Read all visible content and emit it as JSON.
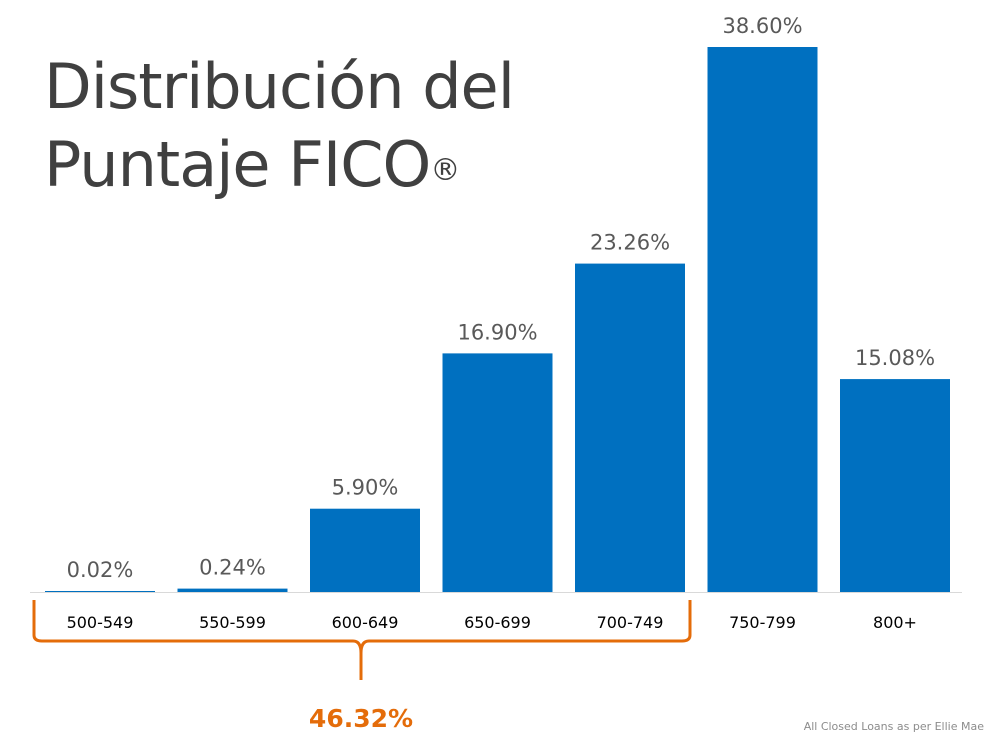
{
  "chart_data": {
    "type": "bar",
    "title": "Distribución del Puntaje FICO",
    "title_line1": "Distribución del",
    "title_line2": "Puntaje FICO",
    "title_mark": "®",
    "categories": [
      "500-549",
      "550-599",
      "600-649",
      "650-699",
      "700-749",
      "750-799",
      "800+"
    ],
    "values": [
      0.02,
      0.24,
      5.9,
      16.9,
      23.26,
      38.6,
      15.08
    ],
    "data_labels": [
      "0.02%",
      "0.24%",
      "5.90%",
      "16.90%",
      "23.26%",
      "38.60%",
      "15.08%"
    ],
    "ylim": [
      0,
      38.6
    ],
    "grid": false,
    "bar_color": "#0070C0",
    "annotation": {
      "text": "46.32%",
      "spans_categories": [
        "500-549",
        "700-749"
      ],
      "color": "#E46C0A"
    },
    "footnote": "All Closed Loans as per Ellie Mae"
  }
}
